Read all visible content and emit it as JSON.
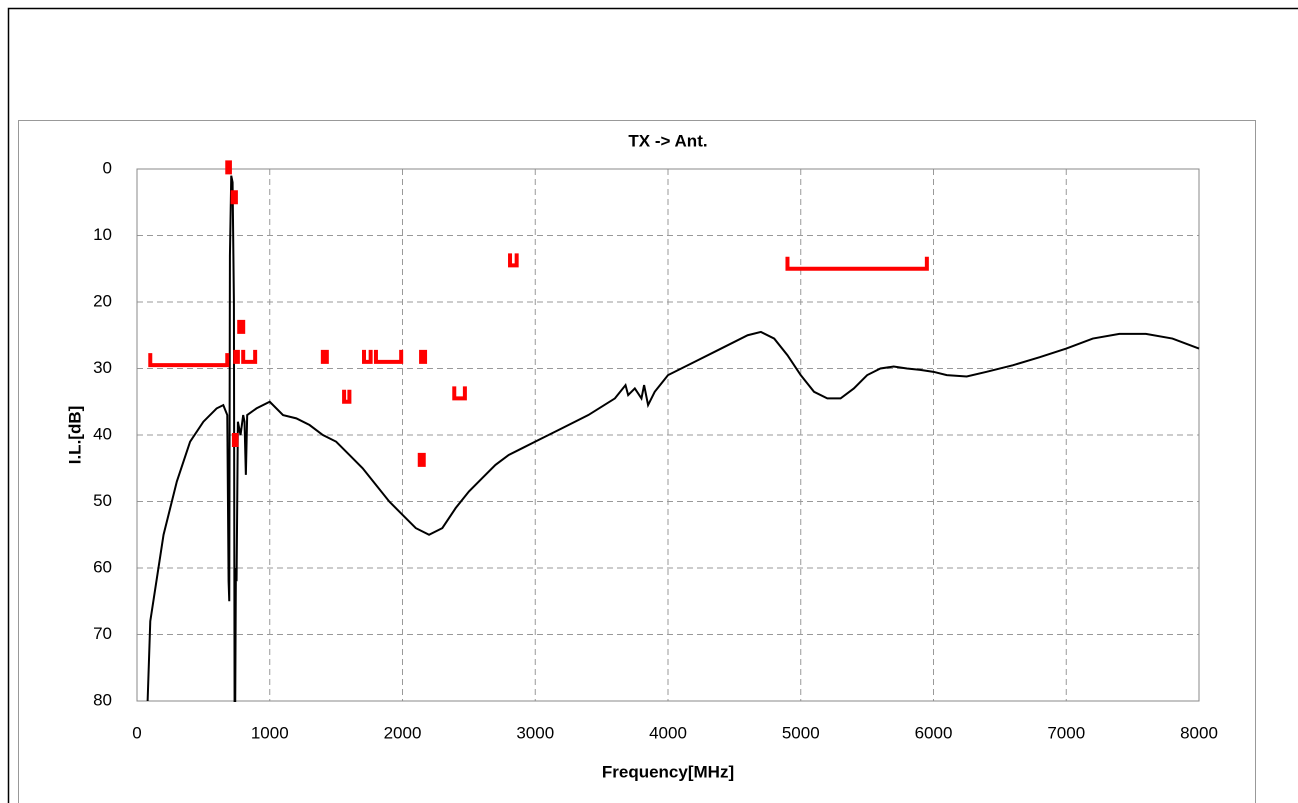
{
  "chart_data": {
    "type": "line",
    "title": "TX -> Ant.",
    "x_label": "Frequency[MHz]",
    "y_label": "I.L.[dB]",
    "xlim": [
      0,
      8000
    ],
    "xticks": [
      0,
      1000,
      2000,
      3000,
      4000,
      5000,
      6000,
      7000,
      8000
    ],
    "ylim": [
      80,
      0
    ],
    "yticks": [
      0,
      10,
      20,
      30,
      40,
      50,
      60,
      70,
      80
    ],
    "grid": true,
    "x": [
      80,
      100,
      200,
      300,
      400,
      500,
      600,
      650,
      680,
      690,
      695,
      700,
      710,
      720,
      730,
      735,
      740,
      745,
      750,
      760,
      780,
      800,
      810,
      820,
      830,
      900,
      1000,
      1100,
      1200,
      1300,
      1400,
      1500,
      1600,
      1700,
      1800,
      1900,
      2000,
      2100,
      2200,
      2300,
      2400,
      2500,
      2600,
      2700,
      2800,
      2900,
      3000,
      3200,
      3400,
      3600,
      3680,
      3700,
      3750,
      3800,
      3820,
      3850,
      3900,
      4000,
      4200,
      4400,
      4600,
      4700,
      4800,
      4900,
      5000,
      5100,
      5200,
      5300,
      5400,
      5500,
      5600,
      5700,
      5800,
      5900,
      6000,
      6100,
      6250,
      6400,
      6600,
      6800,
      7000,
      7200,
      7400,
      7600,
      7800,
      8000
    ],
    "series": [
      {
        "color": "#000000",
        "values": [
          80,
          68,
          55,
          47,
          41,
          38,
          36,
          35.5,
          37,
          62,
          65,
          13,
          1,
          2,
          20,
          80,
          80,
          60,
          62,
          38,
          40,
          37,
          38,
          46,
          37,
          36,
          35,
          37,
          37.5,
          38.5,
          40,
          41,
          43,
          45,
          47.5,
          50,
          52,
          54,
          55,
          54,
          51,
          48.5,
          46.5,
          44.5,
          43,
          42,
          41,
          39,
          37,
          34.5,
          32.5,
          34,
          33,
          34.5,
          32.5,
          35.5,
          33.5,
          31,
          29,
          27,
          25,
          24.5,
          25.5,
          28,
          31,
          33.5,
          34.5,
          34.5,
          33,
          31,
          30,
          29.7,
          30,
          30.2,
          30.5,
          31,
          31.2,
          30.5,
          29.5,
          28.3,
          27,
          25.5,
          24.8,
          24.8,
          25.5,
          27
        ]
      }
    ],
    "limits": {
      "color": "#ff0000",
      "segments": [
        {
          "x": [
            100,
            680
          ],
          "y": 29.5
        },
        {
          "x": [
            680,
            700
          ],
          "y": 0.5
        },
        {
          "x": [
            720,
            745
          ],
          "y": 5
        },
        {
          "x": [
            770,
            800
          ],
          "y": 24.5
        },
        {
          "x": [
            740,
            760
          ],
          "y": 29
        },
        {
          "x": [
            800,
            890
          ],
          "y": 29
        },
        {
          "x": [
            730,
            750
          ],
          "y": 41.5
        },
        {
          "x": [
            1400,
            1430
          ],
          "y": 29
        },
        {
          "x": [
            1560,
            1600
          ],
          "y": 35
        },
        {
          "x": [
            1710,
            1760
          ],
          "y": 29
        },
        {
          "x": [
            1800,
            1990
          ],
          "y": 29
        },
        {
          "x": [
            2130,
            2160
          ],
          "y": 44.5
        },
        {
          "x": [
            2140,
            2170
          ],
          "y": 29
        },
        {
          "x": [
            2390,
            2470
          ],
          "y": 34.5
        },
        {
          "x": [
            2810,
            2860
          ],
          "y": 14.5
        },
        {
          "x": [
            4900,
            5950
          ],
          "y": 15
        }
      ]
    }
  }
}
